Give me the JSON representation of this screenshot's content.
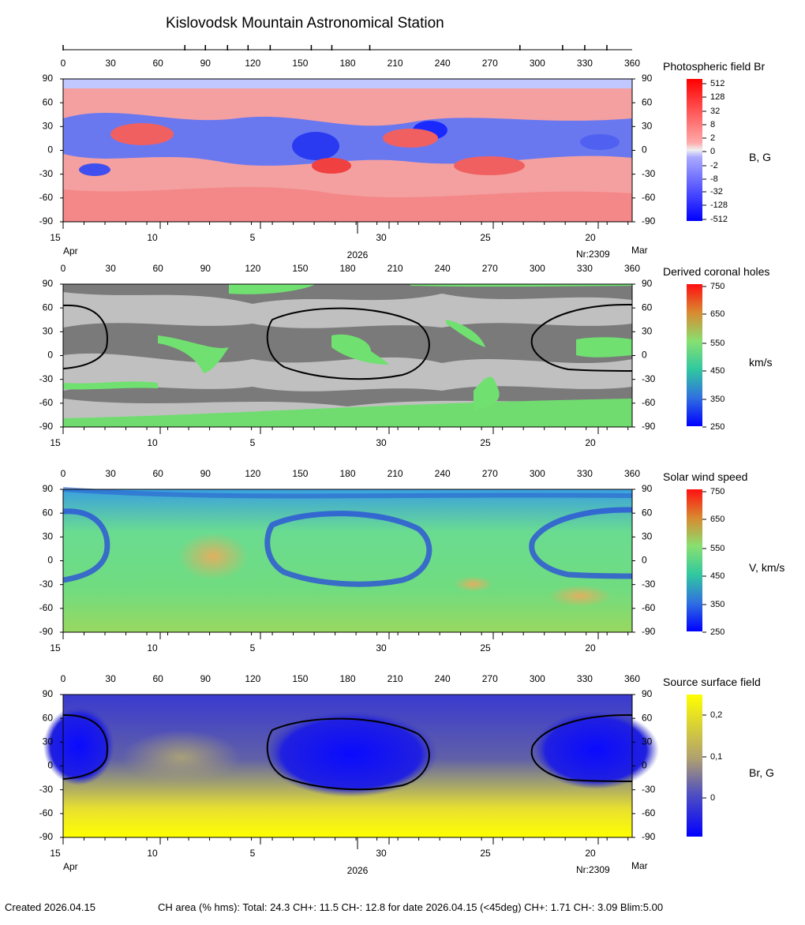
{
  "title": "Kislovodsk Mountain Astronomical Station",
  "footer": {
    "created": "Created  2026.04.15",
    "ch_area": "CH area (% hms): Total: 24.3 CH+: 11.5   CH-: 12.8 for date 2026.04.15 (<45deg) CH+: 1.71    CH-: 3.09 Blim:5.00"
  },
  "axes": {
    "longitude_ticks": [
      "0",
      "30",
      "60",
      "90",
      "120",
      "150",
      "180",
      "210",
      "240",
      "270",
      "300",
      "330",
      "360"
    ],
    "latitude_ticks": [
      "90",
      "60",
      "30",
      "0",
      "-30",
      "-60",
      "-90"
    ],
    "date_ticks": [
      "15",
      "10",
      "5",
      "30",
      "25",
      "20"
    ],
    "date_month_left": "Apr",
    "date_year": "2026",
    "rotation": "Nr:2309",
    "date_month_right": "Mar"
  },
  "colors": {
    "field_positive": "#ff2020",
    "field_negative": "#2020ff",
    "gray_dark": "#7a7a7a",
    "gray_light": "#c0c0c0",
    "wind_low": "#0000ff",
    "wind_mid": "#66ee66",
    "wind_high": "#ff1010",
    "ss_negative": "#0a0aff",
    "ss_positive": "#ffff00"
  },
  "chart_data": [
    {
      "type": "heatmap",
      "title": "Photospheric field Br",
      "unit_label": "B, G",
      "xlabel": "",
      "ylabel": "",
      "xlim": [
        0,
        360
      ],
      "ylim": [
        -90,
        90
      ],
      "colorbar_ticks": [
        "512",
        "128",
        "32",
        "8",
        "2",
        "0",
        "-2",
        "-8",
        "-32",
        "-128",
        "-512"
      ],
      "grid": false
    },
    {
      "type": "heatmap",
      "title": "Derived coronal holes",
      "unit_label": "km/s",
      "xlim": [
        0,
        360
      ],
      "ylim": [
        -90,
        90
      ],
      "colorbar_ticks": [
        "750",
        "650",
        "550",
        "450",
        "350",
        "250"
      ],
      "grid": false
    },
    {
      "type": "heatmap",
      "title": "Solar wind speed",
      "unit_label": "V, km/s",
      "xlim": [
        0,
        360
      ],
      "ylim": [
        -90,
        90
      ],
      "colorbar_ticks": [
        "750",
        "650",
        "550",
        "450",
        "350",
        "250"
      ],
      "grid": false
    },
    {
      "type": "heatmap",
      "title": "Source surface field",
      "unit_label": "Br, G",
      "xlim": [
        0,
        360
      ],
      "ylim": [
        -90,
        90
      ],
      "colorbar_ticks": [
        "0,2",
        "0,1",
        "0"
      ],
      "grid": false
    }
  ]
}
